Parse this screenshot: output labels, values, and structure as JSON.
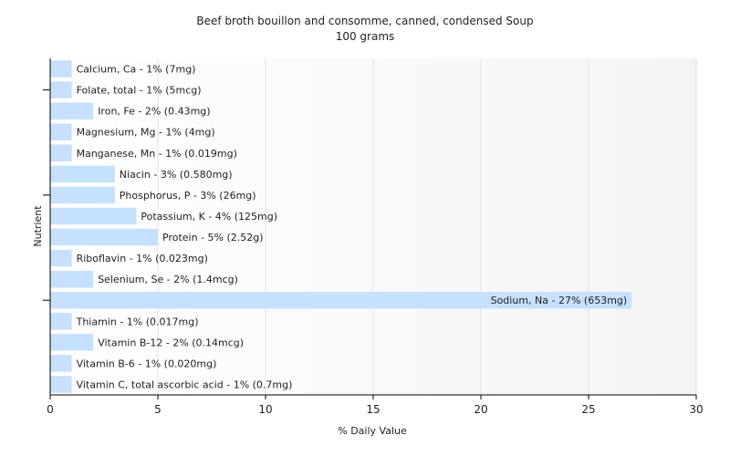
{
  "chart_data": {
    "type": "bar",
    "orientation": "horizontal",
    "title": "Beef broth bouillon and consomme, canned, condensed Soup",
    "subtitle": "100 grams",
    "xlabel": "% Daily Value",
    "ylabel": "Nutrient",
    "xlim": [
      0,
      30
    ],
    "xticks": [
      0,
      5,
      10,
      15,
      20,
      25,
      30
    ],
    "grid": true,
    "bar_color": "#c6e0ff",
    "categories": [
      "Calcium, Ca",
      "Folate, total",
      "Iron, Fe",
      "Magnesium, Mg",
      "Manganese, Mn",
      "Niacin",
      "Phosphorus, P",
      "Potassium, K",
      "Protein",
      "Riboflavin",
      "Selenium, Se",
      "Sodium, Na",
      "Thiamin",
      "Vitamin B-12",
      "Vitamin B-6",
      "Vitamin C, total ascorbic acid"
    ],
    "values": [
      1,
      1,
      2,
      1,
      1,
      3,
      3,
      4,
      5,
      1,
      2,
      27,
      1,
      2,
      1,
      1
    ],
    "labels": [
      "Calcium, Ca - 1% (7mg)",
      "Folate, total - 1% (5mcg)",
      "Iron, Fe - 2% (0.43mg)",
      "Magnesium, Mg - 1% (4mg)",
      "Manganese, Mn - 1% (0.019mg)",
      "Niacin - 3% (0.580mg)",
      "Phosphorus, P - 3% (26mg)",
      "Potassium, K - 4% (125mg)",
      "Protein - 5% (2.52g)",
      "Riboflavin - 1% (0.023mg)",
      "Selenium, Se - 2% (1.4mcg)",
      "Sodium, Na - 27% (653mg)",
      "Thiamin - 1% (0.017mg)",
      "Vitamin B-12 - 2% (0.14mcg)",
      "Vitamin B-6 - 1% (0.020mg)",
      "Vitamin C, total ascorbic acid - 1% (0.7mg)"
    ]
  }
}
